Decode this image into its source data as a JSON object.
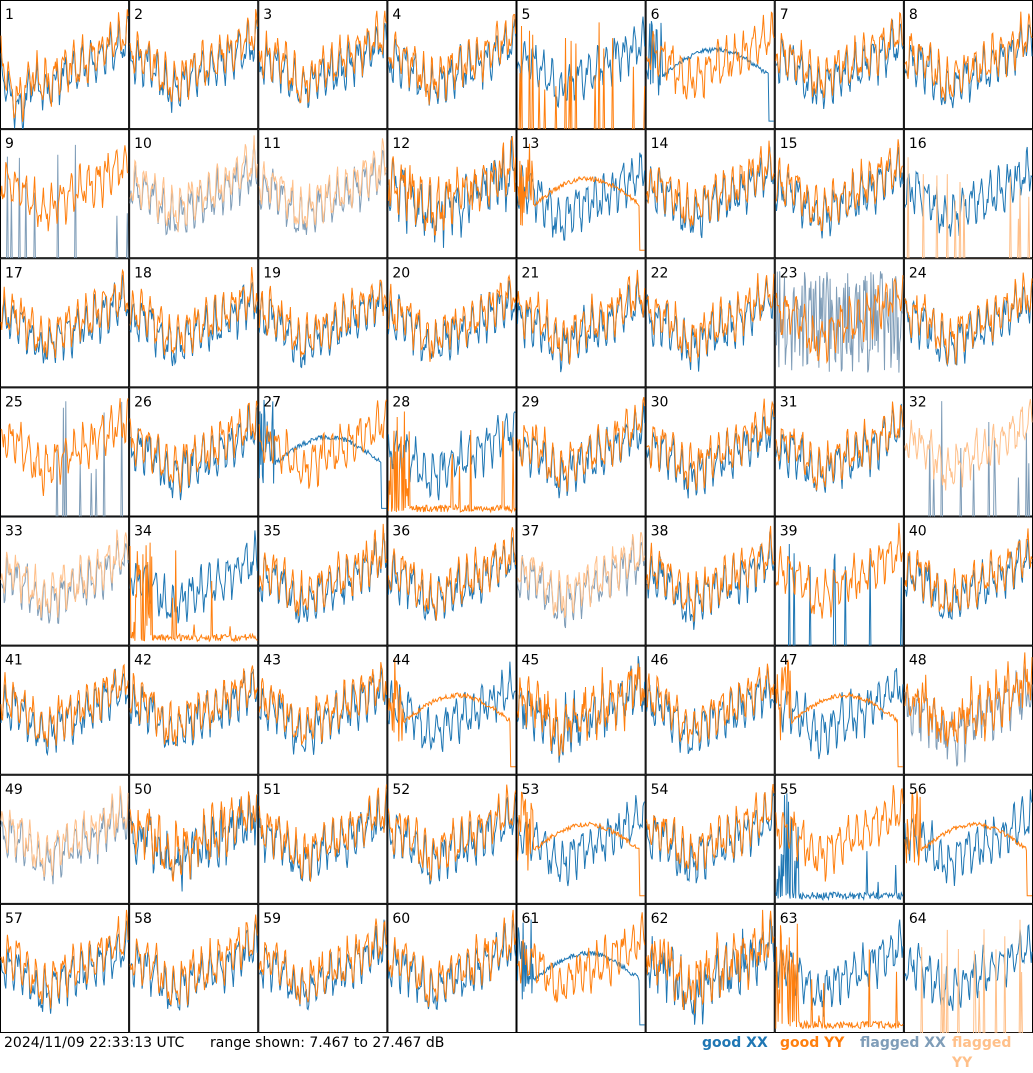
{
  "chart_data": {
    "type": "line",
    "layout": "8x8 small multiples, one panel per antenna",
    "x_axis": "frequency channel (unlabeled)",
    "y_axis": "power (dB)",
    "ylim": [
      7.467,
      27.467
    ],
    "grid": false,
    "panels": [
      {
        "id": "1",
        "xx": "good",
        "yy": "good",
        "pattern": "dip_low"
      },
      {
        "id": "2",
        "xx": "good",
        "yy": "good",
        "pattern": "normal"
      },
      {
        "id": "3",
        "xx": "good",
        "yy": "good",
        "pattern": "normal"
      },
      {
        "id": "4",
        "xx": "good",
        "yy": "good",
        "pattern": "normal"
      },
      {
        "id": "5",
        "xx": "good",
        "yy": "good",
        "pattern": "yy_spikes"
      },
      {
        "id": "6",
        "xx": "good",
        "yy": "good",
        "pattern": "xx_hump"
      },
      {
        "id": "7",
        "xx": "good",
        "yy": "good",
        "pattern": "normal"
      },
      {
        "id": "8",
        "xx": "good",
        "yy": "good",
        "pattern": "normal"
      },
      {
        "id": "9",
        "xx": "flagged",
        "yy": "good",
        "pattern": "xx_spikes"
      },
      {
        "id": "10",
        "xx": "flagged",
        "yy": "flagged",
        "pattern": "normal"
      },
      {
        "id": "11",
        "xx": "flagged",
        "yy": "flagged",
        "pattern": "normal"
      },
      {
        "id": "12",
        "xx": "good",
        "yy": "good",
        "pattern": "noisy"
      },
      {
        "id": "13",
        "xx": "good",
        "yy": "good",
        "pattern": "yy_hump"
      },
      {
        "id": "14",
        "xx": "good",
        "yy": "good",
        "pattern": "normal"
      },
      {
        "id": "15",
        "xx": "good",
        "yy": "good",
        "pattern": "normal"
      },
      {
        "id": "16",
        "xx": "good",
        "yy": "flagged",
        "pattern": "yy_spikes"
      },
      {
        "id": "17",
        "xx": "good",
        "yy": "good",
        "pattern": "normal"
      },
      {
        "id": "18",
        "xx": "good",
        "yy": "good",
        "pattern": "normal"
      },
      {
        "id": "19",
        "xx": "good",
        "yy": "good",
        "pattern": "normal"
      },
      {
        "id": "20",
        "xx": "good",
        "yy": "good",
        "pattern": "normal"
      },
      {
        "id": "21",
        "xx": "good",
        "yy": "good",
        "pattern": "normal"
      },
      {
        "id": "22",
        "xx": "good",
        "yy": "good",
        "pattern": "normal"
      },
      {
        "id": "23",
        "xx": "flagged",
        "yy": "good",
        "pattern": "xx_chaos"
      },
      {
        "id": "24",
        "xx": "good",
        "yy": "good",
        "pattern": "normal"
      },
      {
        "id": "25",
        "xx": "flagged",
        "yy": "good",
        "pattern": "xx_spikes"
      },
      {
        "id": "26",
        "xx": "good",
        "yy": "good",
        "pattern": "normal"
      },
      {
        "id": "27",
        "xx": "good",
        "yy": "good",
        "pattern": "xx_hump"
      },
      {
        "id": "28",
        "xx": "good",
        "yy": "good",
        "pattern": "yy_dead"
      },
      {
        "id": "29",
        "xx": "good",
        "yy": "good",
        "pattern": "normal"
      },
      {
        "id": "30",
        "xx": "good",
        "yy": "good",
        "pattern": "normal"
      },
      {
        "id": "31",
        "xx": "good",
        "yy": "good",
        "pattern": "normal"
      },
      {
        "id": "32",
        "xx": "flagged",
        "yy": "flagged",
        "pattern": "xx_spikes"
      },
      {
        "id": "33",
        "xx": "flagged",
        "yy": "flagged",
        "pattern": "normal"
      },
      {
        "id": "34",
        "xx": "good",
        "yy": "good",
        "pattern": "yy_dead"
      },
      {
        "id": "35",
        "xx": "good",
        "yy": "good",
        "pattern": "normal"
      },
      {
        "id": "36",
        "xx": "good",
        "yy": "good",
        "pattern": "normal"
      },
      {
        "id": "37",
        "xx": "flagged",
        "yy": "flagged",
        "pattern": "normal"
      },
      {
        "id": "38",
        "xx": "good",
        "yy": "good",
        "pattern": "normal"
      },
      {
        "id": "39",
        "xx": "good",
        "yy": "good",
        "pattern": "xx_spikes"
      },
      {
        "id": "40",
        "xx": "good",
        "yy": "good",
        "pattern": "normal"
      },
      {
        "id": "41",
        "xx": "good",
        "yy": "good",
        "pattern": "normal"
      },
      {
        "id": "42",
        "xx": "good",
        "yy": "good",
        "pattern": "normal"
      },
      {
        "id": "43",
        "xx": "good",
        "yy": "good",
        "pattern": "normal"
      },
      {
        "id": "44",
        "xx": "good",
        "yy": "good",
        "pattern": "yy_hump"
      },
      {
        "id": "45",
        "xx": "good",
        "yy": "good",
        "pattern": "noisy"
      },
      {
        "id": "46",
        "xx": "good",
        "yy": "good",
        "pattern": "normal"
      },
      {
        "id": "47",
        "xx": "good",
        "yy": "good",
        "pattern": "yy_hump"
      },
      {
        "id": "48",
        "xx": "flagged",
        "yy": "good",
        "pattern": "noisy"
      },
      {
        "id": "49",
        "xx": "flagged",
        "yy": "flagged",
        "pattern": "normal"
      },
      {
        "id": "50",
        "xx": "good",
        "yy": "good",
        "pattern": "noisy"
      },
      {
        "id": "51",
        "xx": "good",
        "yy": "good",
        "pattern": "normal"
      },
      {
        "id": "52",
        "xx": "good",
        "yy": "good",
        "pattern": "normal"
      },
      {
        "id": "53",
        "xx": "good",
        "yy": "good",
        "pattern": "yy_hump"
      },
      {
        "id": "54",
        "xx": "good",
        "yy": "good",
        "pattern": "normal"
      },
      {
        "id": "55",
        "xx": "good",
        "yy": "good",
        "pattern": "xx_dead"
      },
      {
        "id": "56",
        "xx": "good",
        "yy": "good",
        "pattern": "yy_hump"
      },
      {
        "id": "57",
        "xx": "good",
        "yy": "good",
        "pattern": "normal"
      },
      {
        "id": "58",
        "xx": "good",
        "yy": "good",
        "pattern": "normal"
      },
      {
        "id": "59",
        "xx": "good",
        "yy": "good",
        "pattern": "normal"
      },
      {
        "id": "60",
        "xx": "good",
        "yy": "good",
        "pattern": "normal"
      },
      {
        "id": "61",
        "xx": "good",
        "yy": "good",
        "pattern": "xx_hump"
      },
      {
        "id": "62",
        "xx": "good",
        "yy": "good",
        "pattern": "noisy"
      },
      {
        "id": "63",
        "xx": "good",
        "yy": "good",
        "pattern": "yy_dead"
      },
      {
        "id": "64",
        "xx": "good",
        "yy": "flagged",
        "pattern": "yy_spikes"
      }
    ],
    "legend": [
      "good XX",
      "good YY",
      "flagged XX",
      "flagged YY"
    ]
  },
  "colors": {
    "good_xx": "#1f77b4",
    "good_yy": "#ff7f0e",
    "flagged_xx": "#7f9db8",
    "flagged_yy": "#ffc08a",
    "frame": "#000000"
  },
  "footer": {
    "timestamp": "2024/11/09 22:33:13 UTC",
    "range": "range shown: 7.467 to 27.467 dB",
    "legend_good_xx": "good XX",
    "legend_good_yy": "good YY",
    "legend_flagged_xx": "flagged XX",
    "legend_flagged_yy": "flagged YY"
  }
}
